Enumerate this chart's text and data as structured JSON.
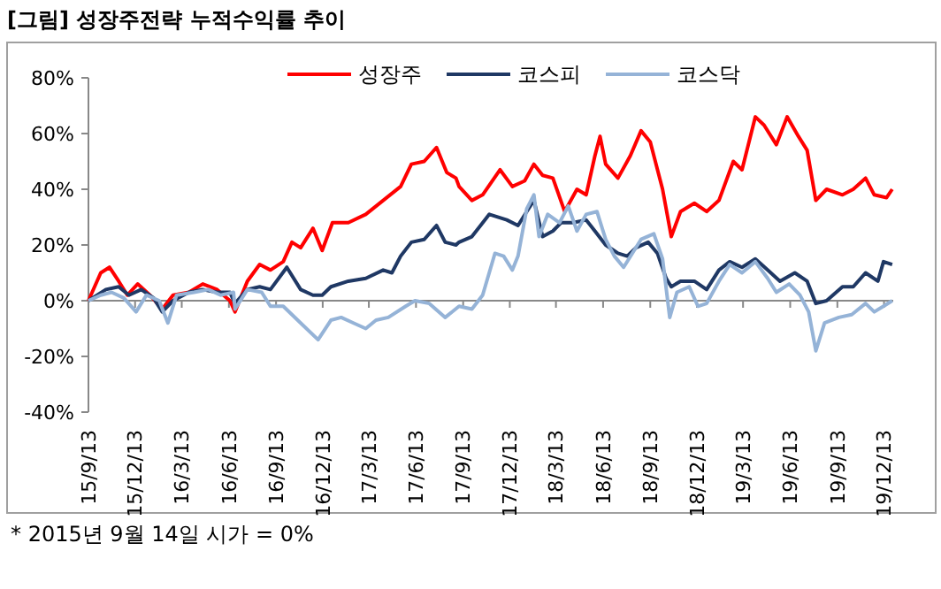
{
  "chart_data": {
    "type": "line",
    "title": "[그림] 성장주전략 누적수익률 추이",
    "annotations": [
      "* 2015년 9월 14일 시가 = 0%"
    ],
    "legend": "top",
    "marker": "none",
    "line_style": "solid",
    "xlim": [
      "2015-09-13",
      "2019-12-31"
    ],
    "xticks": [
      {
        "value": "2015-09-13",
        "label": "15/9/13"
      },
      {
        "value": "2015-12-13",
        "label": "15/12/13"
      },
      {
        "value": "2016-03-13",
        "label": "16/3/13"
      },
      {
        "value": "2016-06-13",
        "label": "16/6/13"
      },
      {
        "value": "2016-09-13",
        "label": "16/9/13"
      },
      {
        "value": "2016-12-13",
        "label": "16/12/13"
      },
      {
        "value": "2017-03-13",
        "label": "17/3/13"
      },
      {
        "value": "2017-06-13",
        "label": "17/6/13"
      },
      {
        "value": "2017-09-13",
        "label": "17/9/13"
      },
      {
        "value": "2017-12-13",
        "label": "17/12/13"
      },
      {
        "value": "2018-03-13",
        "label": "18/3/13"
      },
      {
        "value": "2018-06-13",
        "label": "18/6/13"
      },
      {
        "value": "2018-09-13",
        "label": "18/9/13"
      },
      {
        "value": "2018-12-13",
        "label": "18/12/13"
      },
      {
        "value": "2019-03-13",
        "label": "19/3/13"
      },
      {
        "value": "2019-06-13",
        "label": "19/6/13"
      },
      {
        "value": "2019-09-13",
        "label": "19/9/13"
      },
      {
        "value": "2019-12-13",
        "label": "19/12/13"
      }
    ],
    "ylim": [
      -40,
      80
    ],
    "yticks": [
      {
        "value": -40,
        "label": "-40%"
      },
      {
        "value": -20,
        "label": "-20%"
      },
      {
        "value": 0,
        "label": "0%"
      },
      {
        "value": 20,
        "label": "20%"
      },
      {
        "value": 40,
        "label": "40%"
      },
      {
        "value": 60,
        "label": "60%"
      },
      {
        "value": 80,
        "label": "80%"
      }
    ],
    "series": [
      {
        "name": "성장주",
        "color": "#ff0000",
        "x": [
          "2015-09-13",
          "2015-10-07",
          "2015-10-24",
          "2015-11-11",
          "2015-11-28",
          "2015-12-18",
          "2016-01-11",
          "2016-02-04",
          "2016-02-25",
          "2016-03-27",
          "2016-04-23",
          "2016-05-21",
          "2016-06-15",
          "2016-06-25",
          "2016-07-19",
          "2016-08-12",
          "2016-09-02",
          "2016-09-27",
          "2016-10-14",
          "2016-10-31",
          "2016-11-24",
          "2016-12-12",
          "2017-01-01",
          "2017-02-01",
          "2017-03-07",
          "2017-04-10",
          "2017-05-14",
          "2017-06-04",
          "2017-06-29",
          "2017-07-23",
          "2017-08-12",
          "2017-08-30",
          "2017-09-05",
          "2017-09-30",
          "2017-10-21",
          "2017-11-24",
          "2017-12-18",
          "2018-01-11",
          "2018-01-29",
          "2018-02-15",
          "2018-03-07",
          "2018-03-30",
          "2018-04-23",
          "2018-05-11",
          "2018-05-28",
          "2018-06-07",
          "2018-06-18",
          "2018-07-12",
          "2018-08-05",
          "2018-08-26",
          "2018-09-13",
          "2018-10-07",
          "2018-10-24",
          "2018-11-11",
          "2018-12-08",
          "2019-01-01",
          "2019-01-25",
          "2019-02-22",
          "2019-03-11",
          "2019-04-06",
          "2019-04-23",
          "2019-05-17",
          "2019-06-07",
          "2019-06-29",
          "2019-07-16",
          "2019-08-02",
          "2019-08-23",
          "2019-09-23",
          "2019-10-14",
          "2019-11-07",
          "2019-11-24",
          "2019-12-18",
          "2019-12-29"
        ],
        "values": [
          0,
          10,
          12,
          7,
          2,
          6,
          2,
          -3,
          2,
          3,
          6,
          4,
          0,
          -4,
          7,
          13,
          11,
          14,
          21,
          19,
          26,
          18,
          28,
          28,
          31,
          36,
          41,
          49,
          50,
          55,
          46,
          44,
          41,
          36,
          38,
          47,
          41,
          43,
          49,
          45,
          44,
          32,
          40,
          38,
          52,
          59,
          49,
          44,
          52,
          61,
          57,
          40,
          23,
          32,
          35,
          32,
          36,
          50,
          47,
          66,
          63,
          56,
          66,
          59,
          54,
          36,
          40,
          38,
          40,
          44,
          38,
          37,
          40
        ]
      },
      {
        "name": "코스피",
        "color": "#1f3864",
        "x": [
          "2015-09-13",
          "2015-10-17",
          "2015-11-11",
          "2015-12-01",
          "2015-12-25",
          "2016-01-18",
          "2016-02-04",
          "2016-02-25",
          "2016-03-27",
          "2016-04-23",
          "2016-05-21",
          "2016-06-15",
          "2016-06-25",
          "2016-07-19",
          "2016-08-12",
          "2016-09-02",
          "2016-10-04",
          "2016-10-31",
          "2016-11-24",
          "2016-12-12",
          "2016-12-29",
          "2017-02-01",
          "2017-03-07",
          "2017-04-10",
          "2017-04-27",
          "2017-05-14",
          "2017-06-04",
          "2017-06-29",
          "2017-07-23",
          "2017-08-09",
          "2017-08-30",
          "2017-09-05",
          "2017-09-30",
          "2017-11-03",
          "2017-12-07",
          "2017-12-29",
          "2018-01-15",
          "2018-01-29",
          "2018-02-15",
          "2018-03-07",
          "2018-03-23",
          "2018-04-16",
          "2018-05-11",
          "2018-05-28",
          "2018-06-18",
          "2018-07-12",
          "2018-07-30",
          "2018-08-16",
          "2018-09-09",
          "2018-09-27",
          "2018-10-14",
          "2018-10-24",
          "2018-11-11",
          "2018-12-08",
          "2019-01-01",
          "2019-01-25",
          "2019-02-15",
          "2019-03-11",
          "2019-04-06",
          "2019-04-30",
          "2019-05-24",
          "2019-06-22",
          "2019-07-16",
          "2019-08-02",
          "2019-08-23",
          "2019-09-23",
          "2019-10-14",
          "2019-11-07",
          "2019-12-01",
          "2019-12-12",
          "2019-12-29"
        ],
        "values": [
          0,
          4,
          5,
          2,
          4,
          1,
          -4,
          0,
          3,
          4,
          3,
          3,
          -1,
          4,
          5,
          4,
          12,
          4,
          2,
          2,
          5,
          7,
          8,
          11,
          10,
          16,
          21,
          22,
          27,
          21,
          20,
          21,
          23,
          31,
          29,
          27,
          32,
          36,
          23,
          25,
          28,
          28,
          29,
          25,
          20,
          17,
          16,
          19,
          21,
          17,
          8,
          5,
          7,
          7,
          4,
          11,
          14,
          12,
          15,
          11,
          7,
          10,
          7,
          -1,
          0,
          5,
          5,
          10,
          7,
          14,
          13
        ]
      },
      {
        "name": "코스닥",
        "color": "#95b3d7",
        "x": [
          "2015-09-13",
          "2015-10-07",
          "2015-10-28",
          "2015-11-21",
          "2015-12-15",
          "2016-01-04",
          "2016-01-29",
          "2016-02-15",
          "2016-03-03",
          "2016-04-06",
          "2016-05-04",
          "2016-05-28",
          "2016-06-22",
          "2016-06-25",
          "2016-07-19",
          "2016-08-16",
          "2016-09-02",
          "2016-09-27",
          "2016-10-31",
          "2016-12-04",
          "2016-12-29",
          "2017-01-18",
          "2017-02-11",
          "2017-03-07",
          "2017-03-27",
          "2017-04-20",
          "2017-05-24",
          "2017-06-11",
          "2017-07-09",
          "2017-08-09",
          "2017-09-05",
          "2017-09-30",
          "2017-10-21",
          "2017-11-14",
          "2017-12-01",
          "2017-12-18",
          "2017-12-29",
          "2018-01-15",
          "2018-01-29",
          "2018-02-08",
          "2018-02-25",
          "2018-03-20",
          "2018-04-06",
          "2018-04-23",
          "2018-05-11",
          "2018-06-01",
          "2018-06-18",
          "2018-07-05",
          "2018-07-23",
          "2018-08-09",
          "2018-08-26",
          "2018-09-20",
          "2018-10-07",
          "2018-10-21",
          "2018-11-04",
          "2018-11-28",
          "2018-12-15",
          "2019-01-01",
          "2019-01-25",
          "2019-02-15",
          "2019-03-11",
          "2019-04-06",
          "2019-04-30",
          "2019-05-17",
          "2019-06-11",
          "2019-07-02",
          "2019-07-19",
          "2019-08-02",
          "2019-08-19",
          "2019-09-16",
          "2019-10-11",
          "2019-11-07",
          "2019-11-24",
          "2019-12-12",
          "2019-12-29"
        ],
        "values": [
          0,
          2,
          3,
          1,
          -4,
          2,
          0,
          -8,
          2,
          3,
          4,
          2,
          3,
          -3,
          4,
          3,
          -2,
          -2,
          -8,
          -14,
          -7,
          -6,
          -8,
          -10,
          -7,
          -6,
          -2,
          0,
          -1,
          -6,
          -2,
          -3,
          2,
          17,
          16,
          11,
          16,
          33,
          38,
          23,
          31,
          28,
          34,
          25,
          31,
          32,
          22,
          16,
          12,
          17,
          22,
          24,
          15,
          -6,
          3,
          5,
          -2,
          -1,
          7,
          13,
          10,
          14,
          8,
          3,
          6,
          2,
          -4,
          -18,
          -8,
          -6,
          -5,
          -1,
          -4,
          -2,
          0
        ]
      }
    ]
  }
}
